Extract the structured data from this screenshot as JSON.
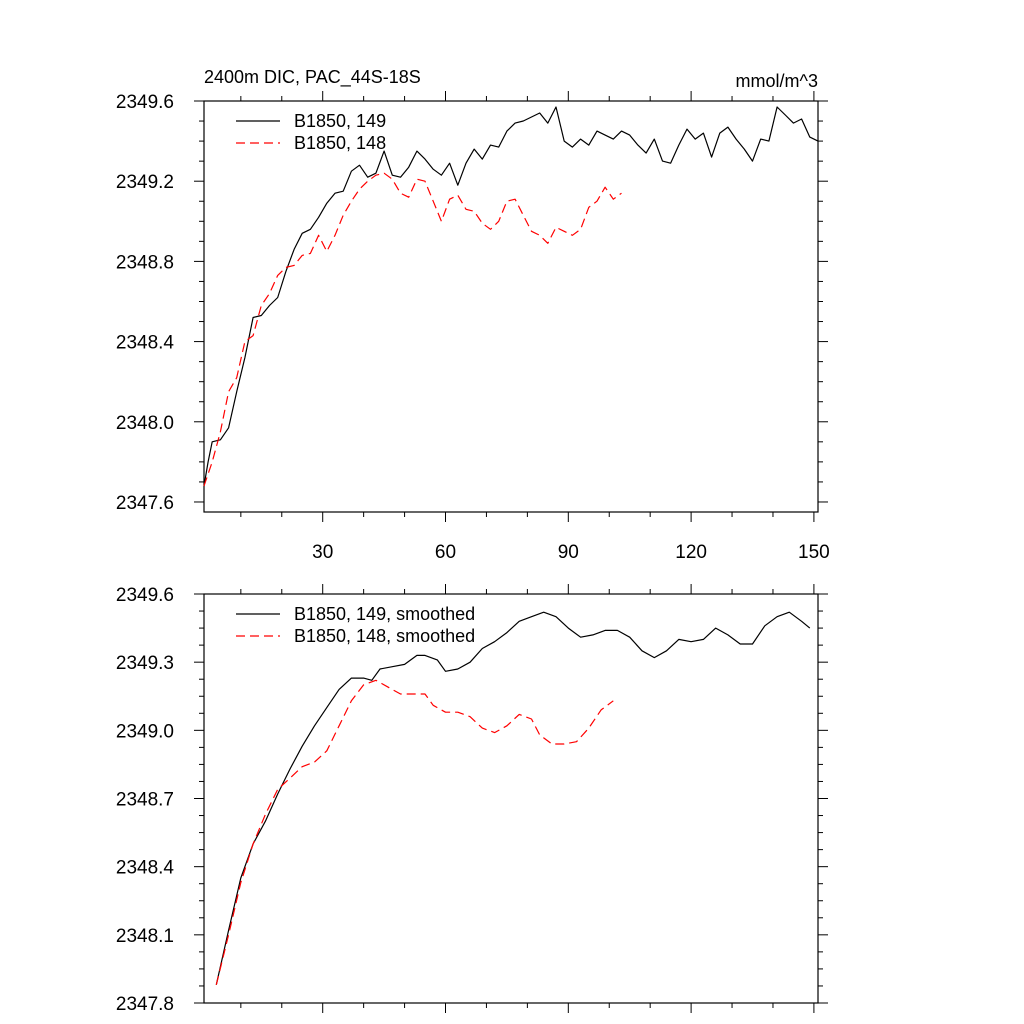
{
  "header": {
    "title": "2400m DIC, PAC_44S-18S",
    "units": "mmol/m^3"
  },
  "chart_data": [
    {
      "type": "line",
      "title": "2400m DIC, PAC_44S-18S",
      "units": "mmol/m^3",
      "xlim": [
        1,
        151
      ],
      "ylim": [
        2347.55,
        2349.6
      ],
      "xticks": [
        30,
        60,
        90,
        120,
        150
      ],
      "xtick_labels": [
        "30",
        "60",
        "90",
        "120",
        "150"
      ],
      "yticks": [
        2347.6,
        2348.0,
        2348.4,
        2348.8,
        2349.2,
        2349.6
      ],
      "ytick_labels": [
        "2347.6",
        "2348.0",
        "2348.4",
        "2348.8",
        "2349.2",
        "2349.6"
      ],
      "legend_position": "top-left",
      "grid": false,
      "series": [
        {
          "name": "B1850, 149",
          "color": "#000000",
          "dash": "solid",
          "points": [
            [
              1,
              2347.68
            ],
            [
              2,
              2347.8
            ],
            [
              3,
              2347.9
            ],
            [
              5,
              2347.91
            ],
            [
              7,
              2347.97
            ],
            [
              9,
              2348.15
            ],
            [
              11,
              2348.32
            ],
            [
              13,
              2348.52
            ],
            [
              15,
              2348.53
            ],
            [
              17,
              2348.58
            ],
            [
              19,
              2348.62
            ],
            [
              21,
              2348.75
            ],
            [
              23,
              2348.86
            ],
            [
              25,
              2348.94
            ],
            [
              27,
              2348.96
            ],
            [
              29,
              2349.02
            ],
            [
              31,
              2349.09
            ],
            [
              33,
              2349.14
            ],
            [
              35,
              2349.15
            ],
            [
              37,
              2349.25
            ],
            [
              39,
              2349.28
            ],
            [
              41,
              2349.22
            ],
            [
              43,
              2349.24
            ],
            [
              45,
              2349.35
            ],
            [
              47,
              2349.23
            ],
            [
              49,
              2349.22
            ],
            [
              51,
              2349.27
            ],
            [
              53,
              2349.35
            ],
            [
              55,
              2349.31
            ],
            [
              57,
              2349.26
            ],
            [
              59,
              2349.23
            ],
            [
              61,
              2349.29
            ],
            [
              63,
              2349.18
            ],
            [
              65,
              2349.29
            ],
            [
              67,
              2349.36
            ],
            [
              69,
              2349.31
            ],
            [
              71,
              2349.38
            ],
            [
              73,
              2349.37
            ],
            [
              75,
              2349.45
            ],
            [
              77,
              2349.49
            ],
            [
              79,
              2349.5
            ],
            [
              81,
              2349.52
            ],
            [
              83,
              2349.54
            ],
            [
              85,
              2349.49
            ],
            [
              87,
              2349.57
            ],
            [
              89,
              2349.4
            ],
            [
              91,
              2349.37
            ],
            [
              93,
              2349.41
            ],
            [
              95,
              2349.38
            ],
            [
              97,
              2349.45
            ],
            [
              99,
              2349.43
            ],
            [
              101,
              2349.41
            ],
            [
              103,
              2349.45
            ],
            [
              105,
              2349.43
            ],
            [
              107,
              2349.38
            ],
            [
              109,
              2349.34
            ],
            [
              111,
              2349.41
            ],
            [
              113,
              2349.3
            ],
            [
              115,
              2349.29
            ],
            [
              117,
              2349.38
            ],
            [
              119,
              2349.46
            ],
            [
              121,
              2349.41
            ],
            [
              123,
              2349.44
            ],
            [
              125,
              2349.32
            ],
            [
              127,
              2349.44
            ],
            [
              129,
              2349.47
            ],
            [
              131,
              2349.41
            ],
            [
              133,
              2349.36
            ],
            [
              135,
              2349.3
            ],
            [
              137,
              2349.41
            ],
            [
              139,
              2349.4
            ],
            [
              141,
              2349.57
            ],
            [
              143,
              2349.53
            ],
            [
              145,
              2349.49
            ],
            [
              147,
              2349.51
            ],
            [
              149,
              2349.42
            ],
            [
              151,
              2349.4
            ]
          ]
        },
        {
          "name": "B1850, 148",
          "color": "#ff0000",
          "dash": "dashed",
          "points": [
            [
              1,
              2347.68
            ],
            [
              3,
              2347.8
            ],
            [
              5,
              2347.95
            ],
            [
              7,
              2348.15
            ],
            [
              9,
              2348.22
            ],
            [
              11,
              2348.4
            ],
            [
              13,
              2348.43
            ],
            [
              15,
              2348.58
            ],
            [
              17,
              2348.64
            ],
            [
              19,
              2348.73
            ],
            [
              21,
              2348.77
            ],
            [
              23,
              2348.78
            ],
            [
              25,
              2348.83
            ],
            [
              27,
              2348.84
            ],
            [
              29,
              2348.93
            ],
            [
              31,
              2348.85
            ],
            [
              33,
              2348.93
            ],
            [
              35,
              2349.03
            ],
            [
              37,
              2349.1
            ],
            [
              39,
              2349.16
            ],
            [
              41,
              2349.2
            ],
            [
              43,
              2349.23
            ],
            [
              45,
              2349.24
            ],
            [
              47,
              2349.21
            ],
            [
              49,
              2349.14
            ],
            [
              51,
              2349.12
            ],
            [
              53,
              2349.21
            ],
            [
              55,
              2349.2
            ],
            [
              57,
              2349.1
            ],
            [
              59,
              2349.0
            ],
            [
              61,
              2349.11
            ],
            [
              63,
              2349.13
            ],
            [
              65,
              2349.06
            ],
            [
              67,
              2349.05
            ],
            [
              69,
              2348.99
            ],
            [
              71,
              2348.96
            ],
            [
              73,
              2349.0
            ],
            [
              75,
              2349.1
            ],
            [
              77,
              2349.11
            ],
            [
              79,
              2349.03
            ],
            [
              81,
              2348.95
            ],
            [
              83,
              2348.93
            ],
            [
              85,
              2348.89
            ],
            [
              87,
              2348.97
            ],
            [
              89,
              2348.95
            ],
            [
              91,
              2348.93
            ],
            [
              93,
              2348.96
            ],
            [
              95,
              2349.07
            ],
            [
              97,
              2349.1
            ],
            [
              99,
              2349.17
            ],
            [
              101,
              2349.11
            ],
            [
              103,
              2349.14
            ]
          ]
        }
      ]
    },
    {
      "type": "line",
      "title": "",
      "xlim": [
        1,
        151
      ],
      "ylim": [
        2347.8,
        2349.6
      ],
      "xticks": [
        30,
        60,
        90,
        120,
        150
      ],
      "xtick_labels": [],
      "yticks": [
        2347.8,
        2348.1,
        2348.4,
        2348.7,
        2349.0,
        2349.3,
        2349.6
      ],
      "ytick_labels": [
        "2347.8",
        "2348.1",
        "2348.4",
        "2348.7",
        "2349.0",
        "2349.3",
        "2349.6"
      ],
      "legend_position": "top-left",
      "grid": false,
      "series": [
        {
          "name": "B1850, 149, smoothed",
          "color": "#000000",
          "dash": "solid",
          "points": [
            [
              4,
              2347.88
            ],
            [
              7,
              2348.12
            ],
            [
              10,
              2348.35
            ],
            [
              13,
              2348.5
            ],
            [
              16,
              2348.6
            ],
            [
              19,
              2348.72
            ],
            [
              22,
              2348.83
            ],
            [
              25,
              2348.93
            ],
            [
              28,
              2349.02
            ],
            [
              31,
              2349.1
            ],
            [
              34,
              2349.18
            ],
            [
              37,
              2349.23
            ],
            [
              40,
              2349.23
            ],
            [
              42,
              2349.22
            ],
            [
              44,
              2349.27
            ],
            [
              47,
              2349.28
            ],
            [
              50,
              2349.29
            ],
            [
              53,
              2349.33
            ],
            [
              55,
              2349.33
            ],
            [
              58,
              2349.31
            ],
            [
              60,
              2349.26
            ],
            [
              63,
              2349.27
            ],
            [
              66,
              2349.3
            ],
            [
              69,
              2349.36
            ],
            [
              72,
              2349.39
            ],
            [
              75,
              2349.43
            ],
            [
              78,
              2349.48
            ],
            [
              81,
              2349.5
            ],
            [
              84,
              2349.52
            ],
            [
              87,
              2349.5
            ],
            [
              90,
              2349.45
            ],
            [
              93,
              2349.41
            ],
            [
              96,
              2349.42
            ],
            [
              99,
              2349.44
            ],
            [
              102,
              2349.44
            ],
            [
              105,
              2349.41
            ],
            [
              108,
              2349.35
            ],
            [
              111,
              2349.32
            ],
            [
              114,
              2349.35
            ],
            [
              117,
              2349.4
            ],
            [
              120,
              2349.39
            ],
            [
              123,
              2349.4
            ],
            [
              126,
              2349.45
            ],
            [
              129,
              2349.42
            ],
            [
              132,
              2349.38
            ],
            [
              135,
              2349.38
            ],
            [
              138,
              2349.46
            ],
            [
              141,
              2349.5
            ],
            [
              144,
              2349.52
            ],
            [
              147,
              2349.48
            ],
            [
              149,
              2349.45
            ]
          ]
        },
        {
          "name": "B1850, 148, smoothed",
          "color": "#ff0000",
          "dash": "dashed",
          "points": [
            [
              4,
              2347.88
            ],
            [
              7,
              2348.1
            ],
            [
              10,
              2348.33
            ],
            [
              13,
              2348.5
            ],
            [
              16,
              2348.63
            ],
            [
              19,
              2348.74
            ],
            [
              22,
              2348.79
            ],
            [
              25,
              2348.84
            ],
            [
              28,
              2348.86
            ],
            [
              31,
              2348.91
            ],
            [
              34,
              2349.02
            ],
            [
              37,
              2349.13
            ],
            [
              40,
              2349.2
            ],
            [
              43,
              2349.22
            ],
            [
              46,
              2349.19
            ],
            [
              49,
              2349.16
            ],
            [
              52,
              2349.16
            ],
            [
              55,
              2349.16
            ],
            [
              57,
              2349.11
            ],
            [
              60,
              2349.08
            ],
            [
              63,
              2349.08
            ],
            [
              66,
              2349.06
            ],
            [
              69,
              2349.01
            ],
            [
              72,
              2348.99
            ],
            [
              75,
              2349.02
            ],
            [
              78,
              2349.07
            ],
            [
              81,
              2349.05
            ],
            [
              83,
              2348.98
            ],
            [
              86,
              2348.94
            ],
            [
              89,
              2348.94
            ],
            [
              92,
              2348.95
            ],
            [
              95,
              2349.01
            ],
            [
              98,
              2349.09
            ],
            [
              101,
              2349.13
            ]
          ]
        }
      ]
    }
  ]
}
